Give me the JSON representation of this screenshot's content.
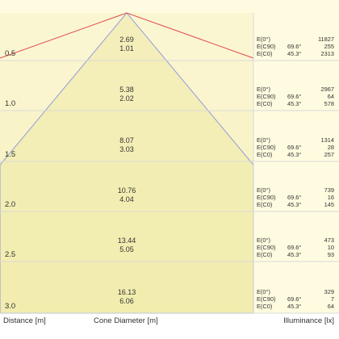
{
  "labels": {
    "distance_axis": "Distance [m]",
    "cone_axis": "Cone Diameter [m]",
    "illuminance_axis": "Illuminance [lx]"
  },
  "colors": {
    "background": "#fffbe0",
    "band": "#f4efb8",
    "cone_fill": "#efeaa6",
    "cone_edge": "#a0a8d6",
    "beam_edge": "#e24a4a",
    "separator": "#d9d9d9"
  },
  "rows": [
    {
      "distance": "0.5",
      "lux_value": "2.69",
      "diameter": "1.01",
      "illuminance": [
        {
          "label": "E(0°)",
          "angle": "",
          "value": "11827"
        },
        {
          "label": "E(C90)",
          "angle": "69.6°",
          "value": "255"
        },
        {
          "label": "E(C0)",
          "angle": "45.3°",
          "value": "2313"
        }
      ]
    },
    {
      "distance": "1.0",
      "lux_value": "5.38",
      "diameter": "2.02",
      "illuminance": [
        {
          "label": "E(0°)",
          "angle": "",
          "value": "2967"
        },
        {
          "label": "E(C90)",
          "angle": "69.6°",
          "value": "64"
        },
        {
          "label": "E(C0)",
          "angle": "45.3°",
          "value": "578"
        }
      ]
    },
    {
      "distance": "1.5",
      "lux_value": "8.07",
      "diameter": "3.03",
      "illuminance": [
        {
          "label": "E(0°)",
          "angle": "",
          "value": "1314"
        },
        {
          "label": "E(C90)",
          "angle": "69.6°",
          "value": "28"
        },
        {
          "label": "E(C0)",
          "angle": "45.3°",
          "value": "257"
        }
      ]
    },
    {
      "distance": "2.0",
      "lux_value": "10.76",
      "diameter": "4.04",
      "illuminance": [
        {
          "label": "E(0°)",
          "angle": "",
          "value": "739"
        },
        {
          "label": "E(C90)",
          "angle": "69.6°",
          "value": "16"
        },
        {
          "label": "E(C0)",
          "angle": "45.3°",
          "value": "145"
        }
      ]
    },
    {
      "distance": "2.5",
      "lux_value": "13.44",
      "diameter": "5.05",
      "illuminance": [
        {
          "label": "E(0°)",
          "angle": "",
          "value": "473"
        },
        {
          "label": "E(C90)",
          "angle": "69.6°",
          "value": "10"
        },
        {
          "label": "E(C0)",
          "angle": "45.3°",
          "value": "93"
        }
      ]
    },
    {
      "distance": "3.0",
      "lux_value": "16.13",
      "diameter": "6.06",
      "illuminance": [
        {
          "label": "E(0°)",
          "angle": "",
          "value": "329"
        },
        {
          "label": "E(C90)",
          "angle": "69.6°",
          "value": "7"
        },
        {
          "label": "E(C0)",
          "angle": "45.3°",
          "value": "64"
        }
      ]
    }
  ]
}
